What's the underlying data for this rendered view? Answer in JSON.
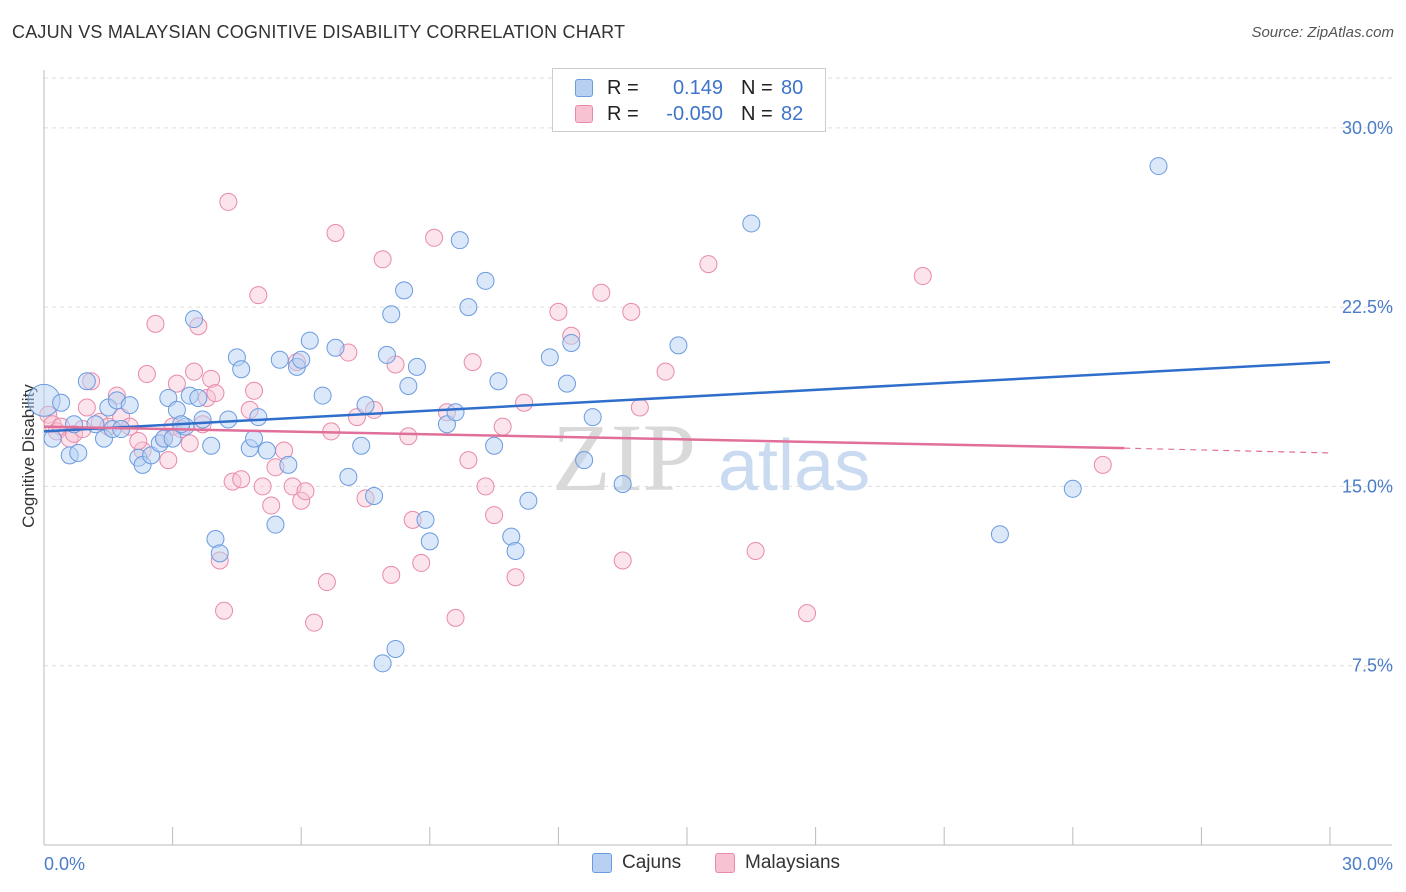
{
  "header": {
    "title": "CAJUN VS MALAYSIAN COGNITIVE DISABILITY CORRELATION CHART",
    "source": "Source: ZipAtlas.com"
  },
  "legend": {
    "rows": [
      {
        "r_label": "R =",
        "r_value": "0.149",
        "n_label": "N =",
        "n_value": "80"
      },
      {
        "r_label": "R =",
        "r_value": "-0.050",
        "n_label": "N =",
        "n_value": "82"
      }
    ]
  },
  "bottom_legend": {
    "cajuns": "Cajuns",
    "malaysians": "Malaysians"
  },
  "watermark": {
    "zip": "ZIP",
    "atlas": "atlas"
  },
  "colors": {
    "cajuns_fill": "#b8d1f3",
    "cajuns_stroke": "#6b9be0",
    "cajuns_line": "#2f6fcb",
    "malaysians_fill": "#f7c3d3",
    "malaysians_stroke": "#e98aaa",
    "malaysians_line": "#e0709a",
    "grid": "#dddddd",
    "tick_text": "#4a7cc7"
  },
  "chart_data": {
    "type": "scatter",
    "title": "CAJUN VS MALAYSIAN COGNITIVE DISABILITY CORRELATION CHART",
    "xlabel": "",
    "ylabel": "Cognitive Disability",
    "xlim": [
      0,
      30
    ],
    "ylim": [
      0,
      32
    ],
    "x_tick_labels": [
      "0.0%",
      "30.0%"
    ],
    "y_ticks": [
      7.5,
      15.0,
      22.5,
      30.0
    ],
    "y_tick_labels": [
      "7.5%",
      "15.0%",
      "22.5%",
      "30.0%"
    ],
    "grid": true,
    "legend_position": "top-center",
    "series": [
      {
        "name": "Cajuns",
        "R": 0.149,
        "N": 80,
        "trend": {
          "x": [
            0,
            30
          ],
          "y": [
            17.3,
            20.2
          ]
        },
        "points": [
          [
            0.0,
            18.6
          ],
          [
            0.2,
            17.0
          ],
          [
            0.4,
            18.5
          ],
          [
            0.6,
            16.3
          ],
          [
            0.7,
            17.6
          ],
          [
            0.8,
            16.4
          ],
          [
            1.0,
            19.4
          ],
          [
            1.2,
            17.6
          ],
          [
            1.4,
            17.0
          ],
          [
            1.5,
            18.3
          ],
          [
            1.6,
            17.4
          ],
          [
            1.7,
            18.6
          ],
          [
            1.8,
            17.4
          ],
          [
            2.0,
            18.4
          ],
          [
            2.2,
            16.2
          ],
          [
            2.3,
            15.9
          ],
          [
            2.5,
            16.3
          ],
          [
            2.7,
            16.8
          ],
          [
            2.8,
            17.0
          ],
          [
            2.9,
            18.7
          ],
          [
            3.0,
            17.0
          ],
          [
            3.1,
            18.2
          ],
          [
            3.3,
            17.5
          ],
          [
            3.4,
            18.8
          ],
          [
            3.5,
            22.0
          ],
          [
            3.6,
            18.7
          ],
          [
            3.7,
            17.8
          ],
          [
            3.9,
            16.7
          ],
          [
            4.0,
            12.8
          ],
          [
            4.1,
            12.2
          ],
          [
            4.3,
            17.8
          ],
          [
            4.5,
            20.4
          ],
          [
            4.6,
            19.9
          ],
          [
            4.8,
            16.6
          ],
          [
            5.0,
            17.9
          ],
          [
            5.2,
            16.5
          ],
          [
            5.4,
            13.4
          ],
          [
            5.5,
            20.3
          ],
          [
            5.7,
            15.9
          ],
          [
            5.9,
            20.0
          ],
          [
            6.0,
            20.3
          ],
          [
            6.2,
            21.1
          ],
          [
            6.5,
            18.8
          ],
          [
            6.8,
            20.8
          ],
          [
            7.1,
            15.4
          ],
          [
            7.4,
            16.7
          ],
          [
            7.5,
            18.4
          ],
          [
            7.7,
            14.6
          ],
          [
            8.0,
            20.5
          ],
          [
            8.1,
            22.2
          ],
          [
            8.2,
            8.2
          ],
          [
            8.4,
            23.2
          ],
          [
            8.5,
            19.2
          ],
          [
            8.7,
            20.0
          ],
          [
            8.9,
            13.6
          ],
          [
            9.0,
            12.7
          ],
          [
            9.4,
            17.6
          ],
          [
            9.6,
            18.1
          ],
          [
            9.7,
            25.3
          ],
          [
            9.9,
            22.5
          ],
          [
            10.3,
            23.6
          ],
          [
            10.6,
            19.4
          ],
          [
            10.9,
            12.9
          ],
          [
            11.0,
            12.3
          ],
          [
            11.3,
            14.4
          ],
          [
            11.8,
            20.4
          ],
          [
            12.2,
            19.3
          ],
          [
            12.3,
            21.0
          ],
          [
            12.6,
            16.1
          ],
          [
            12.8,
            17.9
          ],
          [
            13.5,
            15.1
          ],
          [
            14.8,
            20.9
          ],
          [
            16.5,
            26.0
          ],
          [
            22.3,
            13.0
          ],
          [
            24.0,
            14.9
          ],
          [
            26.0,
            28.4
          ],
          [
            7.9,
            7.6
          ],
          [
            3.2,
            17.6
          ],
          [
            4.9,
            17.0
          ],
          [
            10.5,
            16.7
          ]
        ]
      },
      {
        "name": "Malaysians",
        "R": -0.05,
        "N": 82,
        "trend": {
          "x": [
            0,
            25.2
          ],
          "y": [
            17.5,
            16.6
          ]
        },
        "trend_dashed": {
          "x": [
            25.2,
            30
          ],
          "y": [
            16.6,
            16.4
          ]
        },
        "points": [
          [
            0.1,
            18.0
          ],
          [
            0.2,
            17.6
          ],
          [
            0.3,
            17.3
          ],
          [
            0.4,
            17.5
          ],
          [
            0.6,
            17.0
          ],
          [
            0.7,
            17.2
          ],
          [
            0.9,
            17.4
          ],
          [
            1.0,
            18.3
          ],
          [
            1.1,
            19.4
          ],
          [
            1.3,
            17.7
          ],
          [
            1.5,
            17.5
          ],
          [
            1.7,
            18.8
          ],
          [
            1.8,
            17.9
          ],
          [
            2.0,
            17.5
          ],
          [
            2.3,
            16.5
          ],
          [
            2.4,
            19.7
          ],
          [
            2.6,
            21.8
          ],
          [
            2.8,
            17.0
          ],
          [
            2.9,
            16.1
          ],
          [
            3.0,
            17.5
          ],
          [
            3.1,
            19.3
          ],
          [
            3.2,
            17.4
          ],
          [
            3.4,
            16.8
          ],
          [
            3.5,
            19.8
          ],
          [
            3.6,
            21.7
          ],
          [
            3.8,
            18.7
          ],
          [
            3.9,
            19.5
          ],
          [
            4.0,
            18.9
          ],
          [
            4.1,
            11.9
          ],
          [
            4.2,
            9.8
          ],
          [
            4.3,
            26.9
          ],
          [
            4.4,
            15.2
          ],
          [
            4.6,
            15.3
          ],
          [
            4.8,
            18.2
          ],
          [
            4.9,
            19.0
          ],
          [
            5.0,
            23.0
          ],
          [
            5.1,
            15.0
          ],
          [
            5.3,
            14.2
          ],
          [
            5.4,
            15.8
          ],
          [
            5.6,
            16.5
          ],
          [
            5.8,
            15.0
          ],
          [
            5.9,
            20.2
          ],
          [
            6.0,
            14.4
          ],
          [
            6.1,
            14.8
          ],
          [
            6.3,
            9.3
          ],
          [
            6.6,
            11.0
          ],
          [
            6.8,
            25.6
          ],
          [
            7.1,
            20.6
          ],
          [
            7.3,
            17.9
          ],
          [
            7.5,
            14.5
          ],
          [
            7.7,
            18.2
          ],
          [
            7.9,
            24.5
          ],
          [
            8.1,
            11.3
          ],
          [
            8.2,
            20.1
          ],
          [
            8.5,
            17.1
          ],
          [
            8.6,
            13.6
          ],
          [
            8.8,
            11.8
          ],
          [
            9.1,
            25.4
          ],
          [
            9.4,
            18.1
          ],
          [
            9.6,
            9.5
          ],
          [
            10.0,
            20.2
          ],
          [
            10.3,
            15.0
          ],
          [
            10.5,
            13.8
          ],
          [
            10.7,
            17.5
          ],
          [
            11.0,
            11.2
          ],
          [
            11.2,
            18.5
          ],
          [
            12.0,
            22.3
          ],
          [
            12.3,
            21.3
          ],
          [
            13.0,
            23.1
          ],
          [
            13.5,
            11.9
          ],
          [
            13.7,
            22.3
          ],
          [
            13.9,
            18.3
          ],
          [
            14.5,
            19.8
          ],
          [
            15.5,
            24.3
          ],
          [
            16.6,
            12.3
          ],
          [
            17.8,
            9.7
          ],
          [
            20.5,
            23.8
          ],
          [
            24.7,
            15.9
          ],
          [
            3.7,
            17.6
          ],
          [
            6.7,
            17.3
          ],
          [
            9.9,
            16.1
          ],
          [
            2.2,
            16.9
          ]
        ]
      }
    ]
  }
}
